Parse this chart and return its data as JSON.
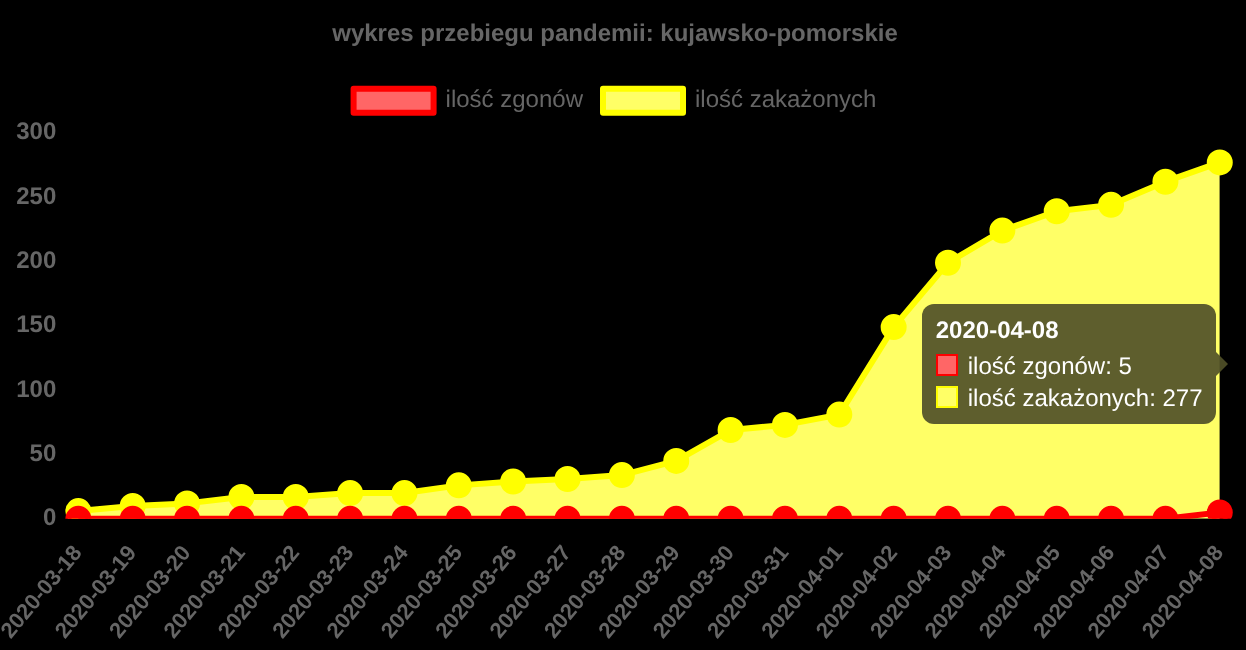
{
  "chart_data": {
    "type": "line",
    "title": "wykres przebiegu pandemii: kujawsko-pomorskie",
    "categories": [
      "2020-03-18",
      "2020-03-19",
      "2020-03-20",
      "2020-03-21",
      "2020-03-22",
      "2020-03-23",
      "2020-03-24",
      "2020-03-25",
      "2020-03-26",
      "2020-03-27",
      "2020-03-28",
      "2020-03-29",
      "2020-03-30",
      "2020-03-31",
      "2020-04-01",
      "2020-04-02",
      "2020-04-03",
      "2020-04-04",
      "2020-04-05",
      "2020-04-06",
      "2020-04-07",
      "2020-04-08"
    ],
    "series": [
      {
        "name": "ilość zgonów",
        "type": "line",
        "color": "#ff0000",
        "values": [
          0,
          0,
          0,
          0,
          0,
          0,
          0,
          0,
          0,
          0,
          0,
          0,
          0,
          0,
          0,
          0,
          0,
          0,
          0,
          0,
          0,
          5
        ]
      },
      {
        "name": "ilość zakażonych",
        "type": "area",
        "color": "#ffff00",
        "values": [
          6,
          10,
          12,
          17,
          17,
          20,
          20,
          26,
          29,
          31,
          34,
          45,
          69,
          73,
          81,
          149,
          199,
          224,
          239,
          244,
          262,
          277
        ]
      }
    ],
    "ylim": [
      0,
      300
    ],
    "yticks": [
      0,
      50,
      100,
      150,
      200,
      250,
      300
    ],
    "grid": false,
    "legend": "top",
    "marker": "circle",
    "annotations": [
      "2020-04-08",
      "ilość zgonów: 5",
      "ilość zakażonych: 277"
    ]
  }
}
